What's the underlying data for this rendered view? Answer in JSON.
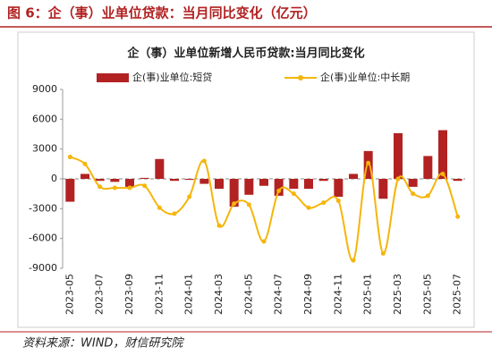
{
  "header": {
    "title": "图 6：企（事）业单位贷款：当月同比变化（亿元）"
  },
  "chart_data": {
    "type": "bar-line",
    "title": "企（事）业单位新增人民币贷款:当月同比变化",
    "categories": [
      "2023-05",
      null,
      "2023-07",
      null,
      "2023-09",
      null,
      "2023-11",
      null,
      "2024-01",
      null,
      "2024-03",
      null,
      "2024-05",
      null,
      "2024-07",
      null,
      "2024-09",
      null,
      "2024-11",
      null,
      "2025-01",
      null,
      "2025-03",
      null,
      "2025-05",
      null,
      "2025-07"
    ],
    "series": [
      {
        "name": "企(事)业单位:短贷",
        "type": "bar",
        "color": "#b22222",
        "values": [
          -2300,
          500,
          -200,
          -300,
          -800,
          100,
          2000,
          -200,
          -100,
          -500,
          -1000,
          -2800,
          -1600,
          -700,
          -1700,
          -1000,
          -1000,
          -200,
          -1800,
          500,
          2800,
          -2000,
          4600,
          -800,
          2300,
          4900,
          -200
        ]
      },
      {
        "name": "企(事)业单位:中长期",
        "type": "line",
        "color": "#f5b50a",
        "values": [
          2200,
          1500,
          -800,
          -900,
          -900,
          -700,
          -2900,
          -3500,
          -1800,
          1800,
          -4700,
          -2500,
          -2600,
          -6300,
          -1200,
          -1500,
          -2900,
          -2400,
          -2200,
          -8200,
          1600,
          -7500,
          0,
          -1500,
          -1700,
          500,
          -3800
        ]
      }
    ],
    "ylim": [
      -9000,
      9000
    ],
    "yticks": [
      -9000,
      -6000,
      -3000,
      0,
      3000,
      6000,
      9000
    ]
  },
  "source": "资料来源：WIND，财信研究院"
}
